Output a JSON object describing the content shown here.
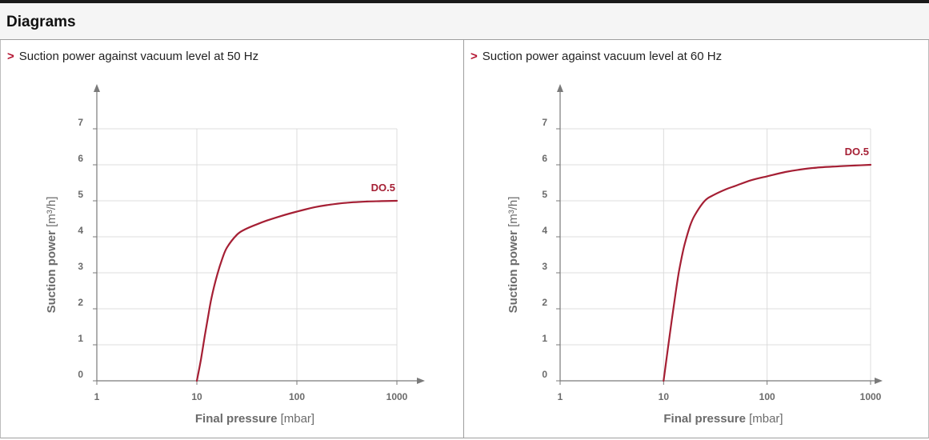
{
  "header": {
    "title": "Diagrams"
  },
  "colors": {
    "curve": "#a51f34",
    "axis": "#7a7a7a",
    "grid": "#dcdcdc",
    "text": "#6b6b6b",
    "chevron": "#b3122f"
  },
  "chart_data": [
    {
      "type": "line",
      "title": "Suction power against vacuum level at 50 Hz",
      "title_prefix": ">",
      "xlabel": "Final pressure",
      "xunit": "[mbar]",
      "ylabel": "Suction power",
      "yunit": "[m³/h]",
      "xscale": "log",
      "xlim": [
        1,
        1000
      ],
      "ylim": [
        0,
        7
      ],
      "xticks": [
        "1",
        "10",
        "100",
        "1000"
      ],
      "yticks": [
        "0",
        "1",
        "2",
        "3",
        "4",
        "5",
        "6",
        "7"
      ],
      "grid": true,
      "series": [
        {
          "name": "DO.5",
          "x": [
            10,
            11,
            12,
            13,
            14,
            16,
            18,
            20,
            25,
            30,
            40,
            50,
            70,
            100,
            150,
            200,
            300,
            500,
            700,
            1000
          ],
          "y": [
            0,
            0.6,
            1.25,
            1.8,
            2.3,
            2.95,
            3.4,
            3.7,
            4.05,
            4.2,
            4.35,
            4.45,
            4.58,
            4.7,
            4.82,
            4.88,
            4.94,
            4.98,
            4.99,
            5.0
          ]
        }
      ]
    },
    {
      "type": "line",
      "title": "Suction power against vacuum level at 60 Hz",
      "title_prefix": ">",
      "xlabel": "Final pressure",
      "xunit": "[mbar]",
      "ylabel": "Suction power",
      "yunit": "[m³/h]",
      "xscale": "log",
      "xlim": [
        1,
        1000
      ],
      "ylim": [
        0,
        7
      ],
      "xticks": [
        "1",
        "10",
        "100",
        "1000"
      ],
      "yticks": [
        "0",
        "1",
        "2",
        "3",
        "4",
        "5",
        "6",
        "7"
      ],
      "grid": true,
      "series": [
        {
          "name": "DO.5",
          "x": [
            10,
            11,
            12,
            13,
            14,
            15,
            16,
            18,
            20,
            25,
            30,
            40,
            50,
            70,
            100,
            150,
            200,
            300,
            500,
            700,
            1000
          ],
          "y": [
            0,
            0.9,
            1.7,
            2.4,
            3.0,
            3.45,
            3.8,
            4.3,
            4.6,
            5.0,
            5.15,
            5.32,
            5.42,
            5.57,
            5.68,
            5.8,
            5.86,
            5.92,
            5.96,
            5.98,
            6.0
          ]
        }
      ]
    }
  ]
}
